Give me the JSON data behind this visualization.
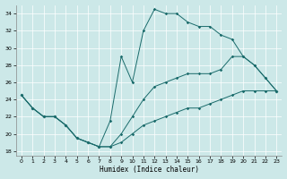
{
  "xlabel": "Humidex (Indice chaleur)",
  "bg_color": "#cce8e8",
  "line_color": "#1a6b6b",
  "grid_color": "#ffffff",
  "xlim": [
    -0.5,
    23.5
  ],
  "ylim": [
    17.5,
    35
  ],
  "xticks": [
    0,
    1,
    2,
    3,
    4,
    5,
    6,
    7,
    8,
    9,
    10,
    11,
    12,
    13,
    14,
    15,
    16,
    17,
    18,
    19,
    20,
    21,
    22,
    23
  ],
  "yticks": [
    18,
    20,
    22,
    24,
    26,
    28,
    30,
    32,
    34
  ],
  "curve1_x": [
    0,
    1,
    2,
    3,
    4,
    5,
    6,
    7,
    8,
    9,
    10,
    11,
    12,
    13,
    14,
    15,
    16,
    17,
    18,
    19,
    20,
    21,
    22,
    23
  ],
  "curve1_y": [
    24.5,
    23.0,
    22.0,
    22.0,
    21.0,
    19.5,
    19.0,
    18.5,
    21.5,
    29.0,
    26.0,
    32.0,
    34.5,
    34.0,
    34.0,
    33.0,
    32.5,
    32.5,
    31.5,
    31.0,
    29.0,
    28.0,
    26.5,
    25.0
  ],
  "curve2_x": [
    0,
    1,
    2,
    3,
    4,
    5,
    6,
    7,
    8,
    9,
    10,
    11,
    12,
    13,
    14,
    15,
    16,
    17,
    18,
    19,
    20,
    21,
    22,
    23
  ],
  "curve2_y": [
    24.5,
    23.0,
    22.0,
    22.0,
    21.0,
    19.5,
    19.0,
    18.5,
    18.5,
    20.0,
    22.0,
    24.0,
    25.5,
    26.0,
    26.5,
    27.0,
    27.0,
    27.0,
    27.5,
    29.0,
    29.0,
    28.0,
    26.5,
    25.0
  ],
  "curve3_x": [
    0,
    1,
    2,
    3,
    4,
    5,
    6,
    7,
    8,
    9,
    10,
    11,
    12,
    13,
    14,
    15,
    16,
    17,
    18,
    19,
    20,
    21,
    22,
    23
  ],
  "curve3_y": [
    24.5,
    23.0,
    22.0,
    22.0,
    21.0,
    19.5,
    19.0,
    18.5,
    18.5,
    19.0,
    20.0,
    21.0,
    21.5,
    22.0,
    22.5,
    23.0,
    23.0,
    23.5,
    24.0,
    24.5,
    25.0,
    25.0,
    25.0,
    25.0
  ]
}
